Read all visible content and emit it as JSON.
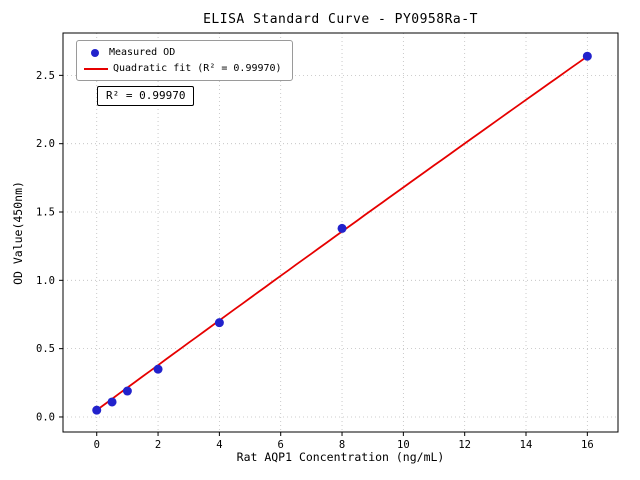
{
  "chart_data": {
    "type": "scatter",
    "title": "ELISA Standard Curve - PY0958Ra-T",
    "xlabel": "Rat AQP1 Concentration (ng/mL)",
    "ylabel": "OD Value(450nm)",
    "annotation": "R² = 0.99970",
    "legend": [
      "Measured OD",
      "Quadratic fit (R² = 0.99970)"
    ],
    "legend_position": "upper left",
    "grid": true,
    "xlim": [
      -1.1,
      17.0
    ],
    "ylim": [
      -0.11,
      2.81
    ],
    "xticks": [
      0,
      2,
      4,
      6,
      8,
      10,
      12,
      14,
      16
    ],
    "xtick_labels": [
      "0",
      "2",
      "4",
      "6",
      "8",
      "10",
      "12",
      "14",
      "16"
    ],
    "yticks": [
      0,
      0.5,
      1.0,
      1.5,
      2.0,
      2.5
    ],
    "ytick_labels": [
      "0.0",
      "0.5",
      "1.0",
      "1.5",
      "2.0",
      "2.5"
    ],
    "points": [
      {
        "x": 0,
        "y": 0.05
      },
      {
        "x": 0.5,
        "y": 0.11
      },
      {
        "x": 1,
        "y": 0.19
      },
      {
        "x": 2,
        "y": 0.35
      },
      {
        "x": 4,
        "y": 0.69
      },
      {
        "x": 8,
        "y": 1.38
      },
      {
        "x": 16,
        "y": 2.64
      }
    ],
    "fit": {
      "type": "quadratic",
      "r_squared": 0.9997,
      "coefficients": {
        "a": -0.0002,
        "b": 0.165,
        "c": 0.05
      },
      "x_range": [
        0,
        16
      ],
      "color": "#e60000"
    },
    "marker_color": "#2222cc",
    "grid_color": "#bdbdbd",
    "axis_color": "#000000"
  }
}
